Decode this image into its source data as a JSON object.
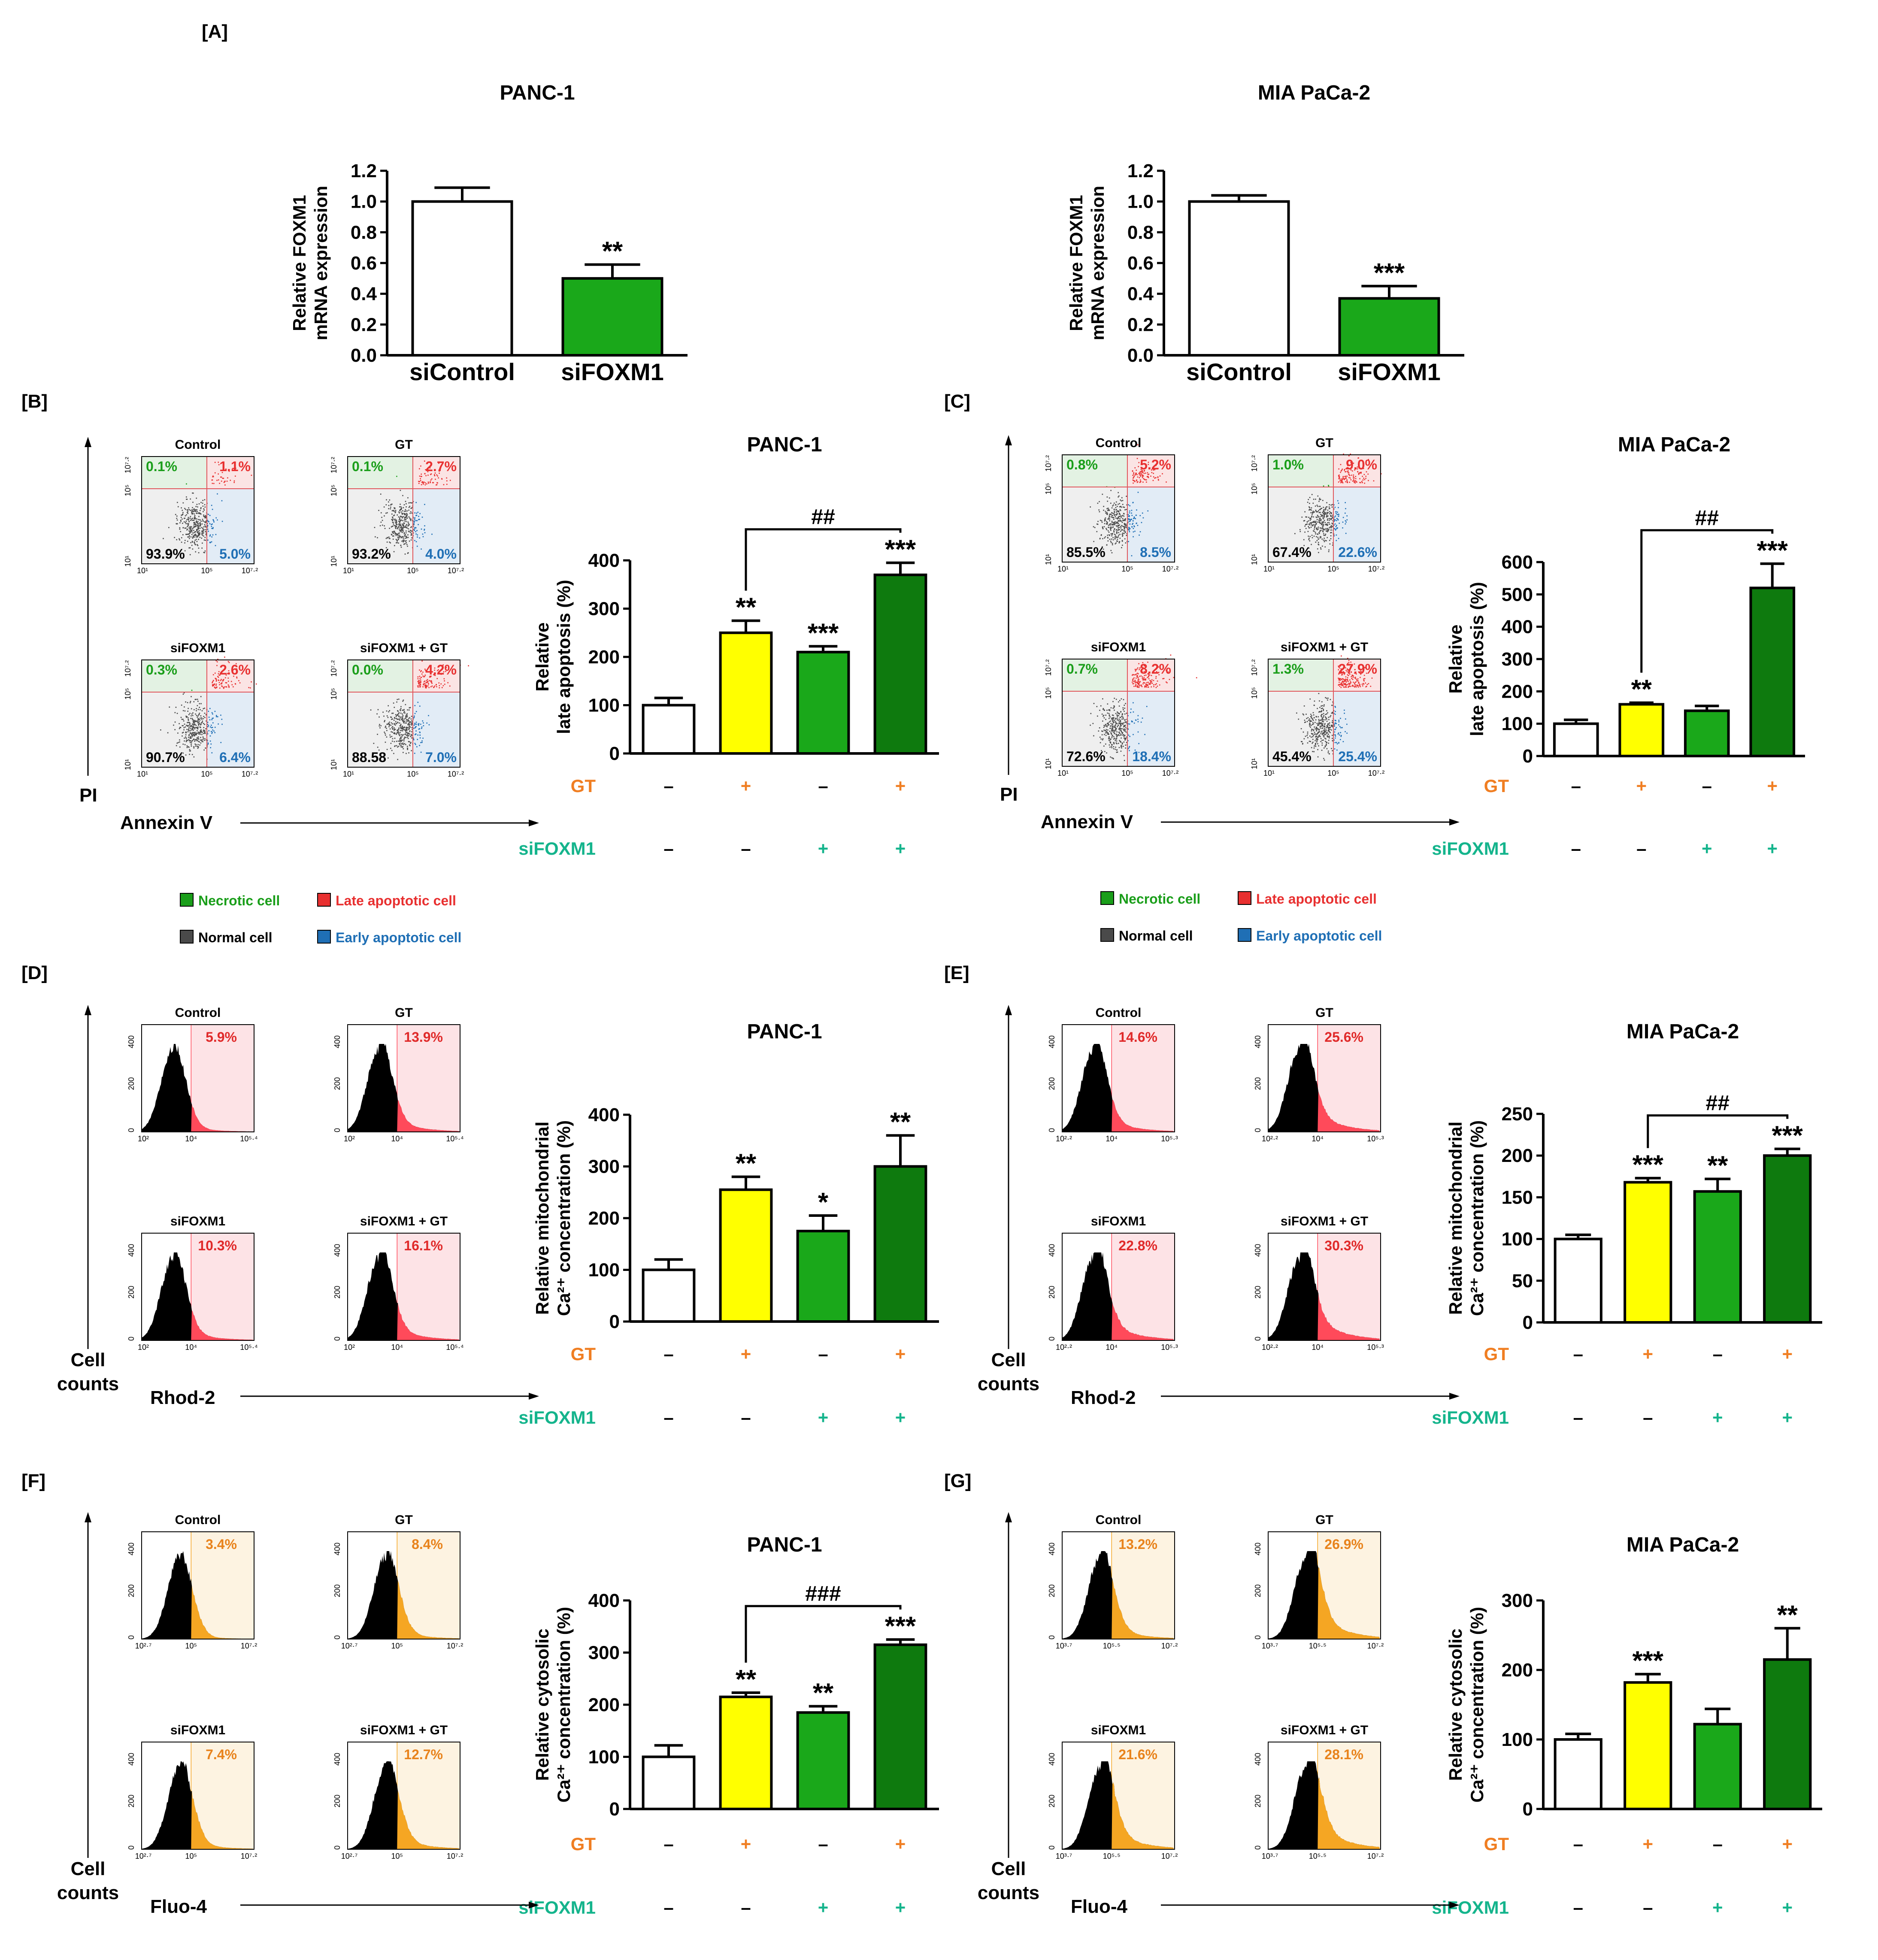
{
  "panel_labels": [
    "[A]",
    "[B]",
    "[C]",
    "[D]",
    "[E]",
    "[F]",
    "[G]"
  ],
  "colors": {
    "siControl": "#ffffff",
    "siFOXM1": "#1aa81a",
    "gt_bar": "#ffff00",
    "combo_bar": "#0e7a0e",
    "gt_sign": "#f07e22",
    "sifoxm1_sign": "#14b48c",
    "necrotic": "#1a9e1a",
    "late_apoptotic": "#e83030",
    "early_apoptotic": "#1f6fb5",
    "normal": "#4a4a4a",
    "rhod_gate": "#ff4a5a",
    "fluo_gate": "#f5a623"
  },
  "condition_rows": {
    "gt_label": "GT",
    "sifoxm1_label": "siFOXM1",
    "gt_signs": [
      "–",
      "+",
      "–",
      "+"
    ],
    "sifoxm1_signs": [
      "–",
      "–",
      "+",
      "+"
    ]
  },
  "flow_conditions": [
    "Control",
    "GT",
    "siFOXM1",
    "siFOXM1 + GT"
  ],
  "legend": {
    "necrotic": "Necrotic cell",
    "late": "Late apoptotic cell",
    "normal": "Normal cell",
    "early": "Early apoptotic cell"
  },
  "axis_names": {
    "pi": "PI",
    "annexin": "Annexin V",
    "cell_counts": [
      "Cell",
      "counts"
    ],
    "rhod": "Rhod-2",
    "fluo": "Fluo-4"
  },
  "chart_data": [
    {
      "panel": "[A]",
      "type": "bar",
      "title": "PANC-1",
      "categories": [
        "siControl",
        "siFOXM1"
      ],
      "values": [
        1.0,
        0.5
      ],
      "errors": [
        0.09,
        0.09
      ],
      "significance": [
        "",
        "**"
      ],
      "ylabel_lines": [
        "Relative FOXM1",
        "mRNA expression"
      ],
      "ylim": [
        0,
        1.2
      ],
      "yticks": [
        "0.0",
        "0.2",
        "0.4",
        "0.6",
        "0.8",
        "1.0",
        "1.2"
      ]
    },
    {
      "panel": "[A]",
      "type": "bar",
      "title": "MIA PaCa-2",
      "categories": [
        "siControl",
        "siFOXM1"
      ],
      "values": [
        1.0,
        0.37
      ],
      "errors": [
        0.04,
        0.08
      ],
      "significance": [
        "",
        "***"
      ],
      "ylabel_lines": [
        "Relative FOXM1",
        "mRNA expression"
      ],
      "ylim": [
        0,
        1.2
      ],
      "yticks": [
        "0.0",
        "0.2",
        "0.4",
        "0.6",
        "0.8",
        "1.0",
        "1.2"
      ]
    },
    {
      "panel": "[B]",
      "type": "bar",
      "title": "PANC-1",
      "values": [
        100,
        250,
        210,
        370
      ],
      "errors": [
        15,
        25,
        12,
        25
      ],
      "significance": [
        "",
        "**",
        "***",
        "***"
      ],
      "comparison": "##",
      "ylabel_lines": [
        "Relative",
        "late apoptosis (%)"
      ],
      "ylim": [
        0,
        400
      ],
      "yticks": [
        "0",
        "100",
        "200",
        "300",
        "400"
      ]
    },
    {
      "panel": "[C]",
      "type": "bar",
      "title": "MIA PaCa-2",
      "values": [
        100,
        160,
        140,
        520
      ],
      "errors": [
        12,
        5,
        15,
        75
      ],
      "significance": [
        "",
        "**",
        "",
        "***"
      ],
      "comparison": "##",
      "ylabel_lines": [
        "Relative",
        "late apoptosis (%)"
      ],
      "ylim": [
        0,
        600
      ],
      "yticks": [
        "0",
        "100",
        "200",
        "300",
        "400",
        "500",
        "600"
      ]
    },
    {
      "panel": "[D]",
      "type": "bar",
      "title": "PANC-1",
      "values": [
        100,
        255,
        175,
        300
      ],
      "errors": [
        20,
        25,
        30,
        60
      ],
      "significance": [
        "",
        "**",
        "*",
        "**"
      ],
      "ylabel_lines": [
        "Relative mitochondrial",
        "Ca²⁺ concentration (%)"
      ],
      "ylim": [
        0,
        400
      ],
      "yticks": [
        "0",
        "100",
        "200",
        "300",
        "400"
      ]
    },
    {
      "panel": "[E]",
      "type": "bar",
      "title": "MIA PaCa-2",
      "values": [
        100,
        168,
        157,
        200
      ],
      "errors": [
        5,
        5,
        15,
        8
      ],
      "significance": [
        "",
        "***",
        "**",
        "***"
      ],
      "comparison": "##",
      "ylabel_lines": [
        "Relative mitochondrial",
        "Ca²⁺ concentration (%)"
      ],
      "ylim": [
        0,
        250
      ],
      "yticks": [
        "0",
        "50",
        "100",
        "150",
        "200",
        "250"
      ]
    },
    {
      "panel": "[F]",
      "type": "bar",
      "title": "PANC-1",
      "values": [
        100,
        215,
        185,
        315
      ],
      "errors": [
        22,
        8,
        12,
        10
      ],
      "significance": [
        "",
        "**",
        "**",
        "***"
      ],
      "comparison": "###",
      "ylabel_lines": [
        "Relative cytosolic",
        "Ca²⁺ concentration (%)"
      ],
      "ylim": [
        0,
        400
      ],
      "yticks": [
        "0",
        "100",
        "200",
        "300",
        "400"
      ]
    },
    {
      "panel": "[G]",
      "type": "bar",
      "title": "MIA PaCa-2",
      "values": [
        100,
        182,
        122,
        215
      ],
      "errors": [
        8,
        12,
        22,
        45
      ],
      "significance": [
        "",
        "***",
        "",
        "**"
      ],
      "ylabel_lines": [
        "Relative cytosolic",
        "Ca²⁺ concentration (%)"
      ],
      "ylim": [
        0,
        300
      ],
      "yticks": [
        "0",
        "100",
        "200",
        "300"
      ]
    }
  ],
  "flow_panels": [
    {
      "panel": "[B]",
      "kind": "dot",
      "x_ticks": [
        "10¹",
        "10⁵",
        "10⁷·²"
      ],
      "y_ticks": [
        "10⁷·²",
        "10⁵",
        "10¹"
      ],
      "quadrants": [
        {
          "necrotic": "0.1%",
          "late": "1.1%",
          "normal": "93.9%",
          "early": "5.0%"
        },
        {
          "necrotic": "0.1%",
          "late": "2.7%",
          "normal": "93.2%",
          "early": "4.0%"
        },
        {
          "necrotic": "0.3%",
          "late": "2.6%",
          "normal": "90.7%",
          "early": "6.4%"
        },
        {
          "necrotic": "0.0%",
          "late": "4.2%",
          "normal": "88.58",
          "early": "7.0%"
        }
      ]
    },
    {
      "panel": "[C]",
      "kind": "dot",
      "x_ticks": [
        "10¹",
        "10⁵",
        "10⁷·²"
      ],
      "y_ticks": [
        "10⁷·²",
        "10⁵",
        "10¹"
      ],
      "quadrants": [
        {
          "necrotic": "0.8%",
          "late": "5.2%",
          "normal": "85.5%",
          "early": "8.5%"
        },
        {
          "necrotic": "1.0%",
          "late": "9.0%",
          "normal": "67.4%",
          "early": "22.6%"
        },
        {
          "necrotic": "0.7%",
          "late": "8.2%",
          "normal": "72.6%",
          "early": "18.4%"
        },
        {
          "necrotic": "1.3%",
          "late": "27.9%",
          "normal": "45.4%",
          "early": "25.4%"
        }
      ]
    },
    {
      "panel": "[D]",
      "kind": "hist",
      "gate": "rhod",
      "x_ticks": [
        "10²",
        "10⁴",
        "10⁵·⁴"
      ],
      "y_ticks": [
        "400",
        "200",
        "0"
      ],
      "percents": [
        "5.9%",
        "13.9%",
        "10.3%",
        "16.1%"
      ]
    },
    {
      "panel": "[E]",
      "kind": "hist",
      "gate": "rhod",
      "x_ticks": [
        "10²·²",
        "10⁴",
        "10⁵·³"
      ],
      "y_ticks": [
        "400",
        "200",
        "0"
      ],
      "percents": [
        "14.6%",
        "25.6%",
        "22.8%",
        "30.3%"
      ]
    },
    {
      "panel": "[F]",
      "kind": "hist",
      "gate": "fluo",
      "x_ticks": [
        "10²·⁷",
        "10⁵",
        "10⁷·²"
      ],
      "y_ticks": [
        "400",
        "200",
        "0"
      ],
      "percents": [
        "3.4%",
        "8.4%",
        "7.4%",
        "12.7%"
      ]
    },
    {
      "panel": "[G]",
      "kind": "hist",
      "gate": "fluo",
      "x_ticks": [
        "10³·⁷",
        "10⁵·⁵",
        "10⁷·²"
      ],
      "y_ticks": [
        "400",
        "200",
        "0"
      ],
      "percents": [
        "13.2%",
        "26.9%",
        "21.6%",
        "28.1%"
      ]
    }
  ]
}
